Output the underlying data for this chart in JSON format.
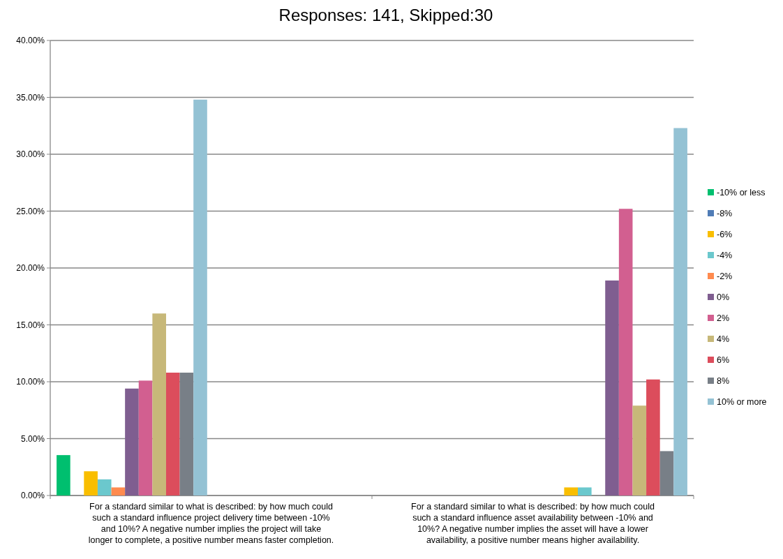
{
  "chart_data": {
    "type": "bar",
    "title": "Responses: 141, Skipped:30",
    "categories": [
      "For a standard similar to what is described: by how much could such a standard influence project delivery time between -10% and 10%? A negative number implies the project will take longer to complete, a positive number means faster completion.",
      "For a standard similar to what is described: by how much could such a standard influence asset availability between -10% and 10%? A negative number implies the asset will have a lower availability, a positive number means  higher availability."
    ],
    "series": [
      {
        "name": "-10% or less",
        "color": "#00bf6f",
        "values": [
          3.55,
          0
        ]
      },
      {
        "name": "-8%",
        "color": "#507cb6",
        "values": [
          0,
          0
        ]
      },
      {
        "name": "-6%",
        "color": "#f9be00",
        "values": [
          2.13,
          0.71
        ]
      },
      {
        "name": "-4%",
        "color": "#6bc8cd",
        "values": [
          1.42,
          0.71
        ]
      },
      {
        "name": "-2%",
        "color": "#ff8b4f",
        "values": [
          0.71,
          0
        ]
      },
      {
        "name": "0%",
        "color": "#7f5e90",
        "values": [
          9.4,
          18.9
        ]
      },
      {
        "name": "2%",
        "color": "#d25f90",
        "values": [
          10.1,
          25.2
        ]
      },
      {
        "name": "4%",
        "color": "#c7b879",
        "values": [
          16.0,
          7.9
        ]
      },
      {
        "name": "6%",
        "color": "#dc4d5c",
        "values": [
          10.8,
          10.2
        ]
      },
      {
        "name": "8%",
        "color": "#787f87",
        "values": [
          10.8,
          3.9
        ]
      },
      {
        "name": "10% or more",
        "color": "#94c2d4",
        "values": [
          34.8,
          32.3
        ]
      }
    ],
    "ylim": [
      0,
      40
    ],
    "yticks": [
      {
        "value": 0,
        "label": "0.00%"
      },
      {
        "value": 5,
        "label": "5.00%"
      },
      {
        "value": 10,
        "label": "10.00%"
      },
      {
        "value": 15,
        "label": "15.00%"
      },
      {
        "value": 20,
        "label": "20.00%"
      },
      {
        "value": 25,
        "label": "25.00%"
      },
      {
        "value": 30,
        "label": "30.00%"
      },
      {
        "value": 35,
        "label": "35.00%"
      },
      {
        "value": 40,
        "label": "40.00%"
      }
    ],
    "grid": "y",
    "legend": "right"
  }
}
